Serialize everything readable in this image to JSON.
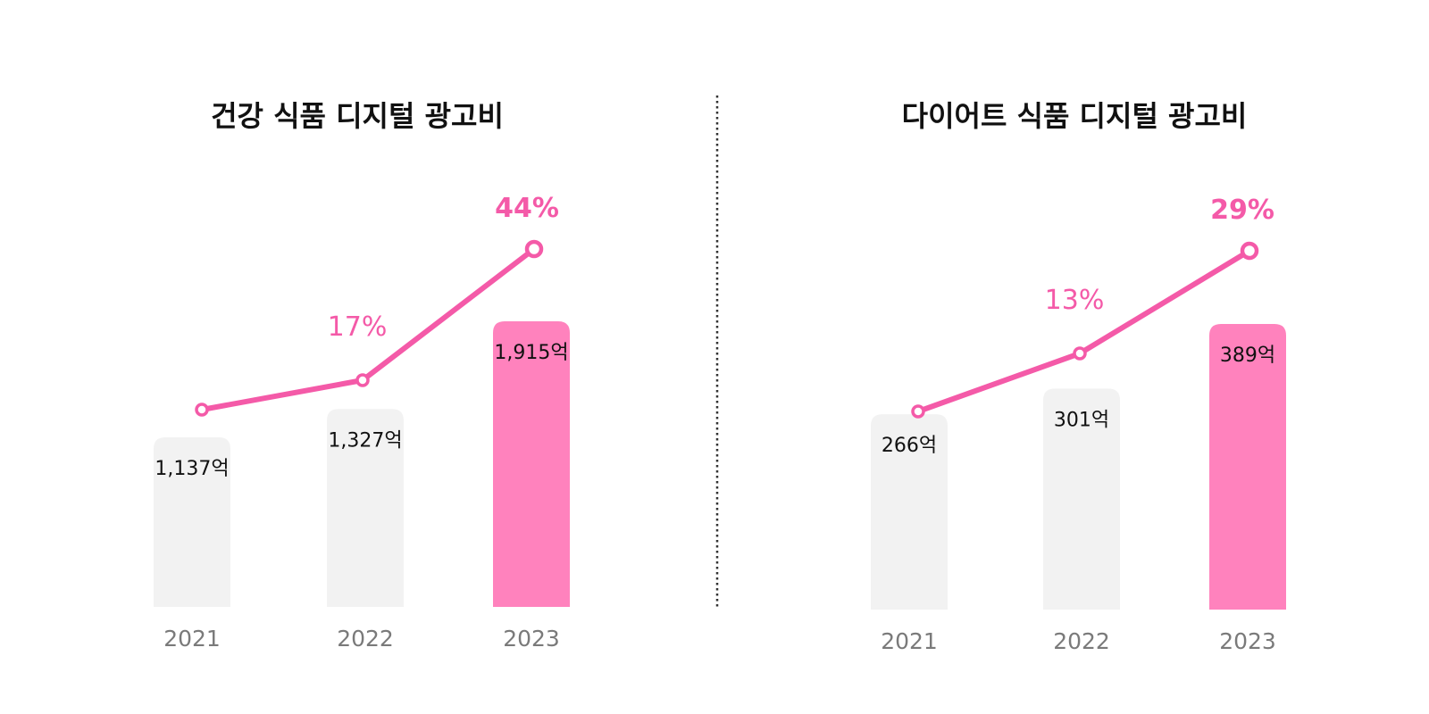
{
  "colors": {
    "accent": "#f45aa8",
    "highlight_bar": "#ff82bd",
    "muted_bar": "#f2f2f2",
    "divider": "#333333"
  },
  "chart_data": [
    {
      "type": "bar",
      "title": "건강 식품 디지털 광고비",
      "categories": [
        "2021",
        "2022",
        "2023"
      ],
      "values": [
        1137,
        1327,
        1915
      ],
      "value_labels": [
        "1,137억",
        "1,327억",
        "1,915억"
      ],
      "unit": "억",
      "highlight_index": 2,
      "growth_line": {
        "growth_labels": [
          null,
          "17%",
          "44%"
        ],
        "growth_values": [
          null,
          17,
          44
        ]
      }
    },
    {
      "type": "bar",
      "title": "다이어트 식품 디지털 광고비",
      "categories": [
        "2021",
        "2022",
        "2023"
      ],
      "values": [
        266,
        301,
        389
      ],
      "value_labels": [
        "266억",
        "301억",
        "389억"
      ],
      "unit": "억",
      "highlight_index": 2,
      "growth_line": {
        "growth_labels": [
          null,
          "13%",
          "29%"
        ],
        "growth_values": [
          null,
          13,
          29
        ]
      }
    }
  ]
}
